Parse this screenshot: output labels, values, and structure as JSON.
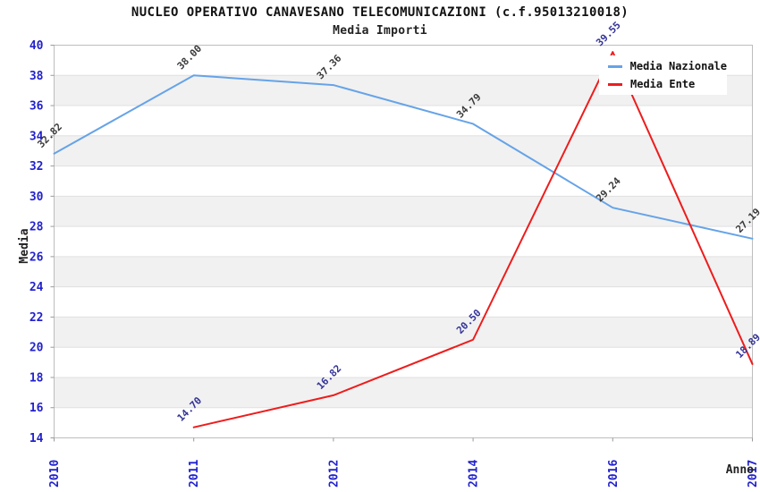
{
  "chart_data": {
    "type": "line",
    "title": "NUCLEO OPERATIVO CANAVESANO TELECOMUNICAZIONI (c.f.95013210018)",
    "subtitle": "Media Importi",
    "xlabel": "Anno",
    "ylabel": "Media",
    "x_categories": [
      "2010",
      "2011",
      "2012",
      "2014",
      "2016",
      "2017"
    ],
    "ylim": [
      14,
      40
    ],
    "y_tick_step": 2,
    "grid": "horizontal-alternating-bands",
    "legend_position": "top-right",
    "series": [
      {
        "name": "Media Nazionale",
        "color": "#66a3e8",
        "label_color": "#3a3a3a",
        "values": [
          32.82,
          38.0,
          37.36,
          34.79,
          29.24,
          27.19
        ]
      },
      {
        "name": "Media Ente",
        "color": "#ee1c1c",
        "label_color": "#333399",
        "values": [
          null,
          14.7,
          16.82,
          20.5,
          39.55,
          18.89
        ]
      }
    ]
  },
  "style_colors": {
    "tick_label": "#2222cc",
    "band_fill": "#f1f1f1",
    "grid_line": "#e0e0e0",
    "plot_border": "#bdbdbd",
    "tick_mark": "#999999"
  }
}
